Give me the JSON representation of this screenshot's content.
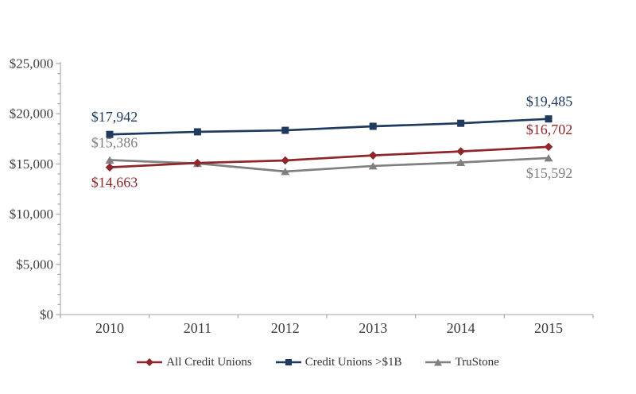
{
  "chart_data": {
    "type": "line",
    "title": "",
    "x_categories": [
      "2010",
      "2011",
      "2012",
      "2013",
      "2014",
      "2015"
    ],
    "y_axis": {
      "min": 0,
      "max": 25000,
      "major_step": 5000,
      "minor_step": 1000,
      "tick_labels": [
        "$0",
        "$5,000",
        "$10,000",
        "$15,000",
        "$20,000",
        "$25,000"
      ]
    },
    "grid": false,
    "legend_position": "bottom",
    "series": [
      {
        "name": "All Credit Unions",
        "color": "#8E262B",
        "marker": "diamond",
        "values": [
          14663,
          15100,
          15350,
          15850,
          16250,
          16702
        ]
      },
      {
        "name": "Credit Unions >$1B",
        "color": "#1F3A5E",
        "marker": "square",
        "values": [
          17942,
          18200,
          18350,
          18750,
          19050,
          19485
        ]
      },
      {
        "name": "TruStone",
        "color": "#808080",
        "marker": "triangle",
        "values": [
          15386,
          15050,
          14250,
          14800,
          15150,
          15592
        ]
      }
    ],
    "point_labels": [
      {
        "series": 1,
        "point": 0,
        "text": "$17,942",
        "placement": "above"
      },
      {
        "series": 2,
        "point": 0,
        "text": "$15,386",
        "placement": "above"
      },
      {
        "series": 0,
        "point": 0,
        "text": "$14,663",
        "placement": "below"
      },
      {
        "series": 1,
        "point": 5,
        "text": "$19,485",
        "placement": "above"
      },
      {
        "series": 0,
        "point": 5,
        "text": "$16,702",
        "placement": "above"
      },
      {
        "series": 2,
        "point": 5,
        "text": "$15,592",
        "placement": "below"
      }
    ],
    "colors": {
      "axis_line": "#b3b3b3",
      "tick_mark": "#a6a6a6",
      "axis_text": "#3d3d3d",
      "legend_text": "#333333",
      "background": "#ffffff"
    }
  }
}
